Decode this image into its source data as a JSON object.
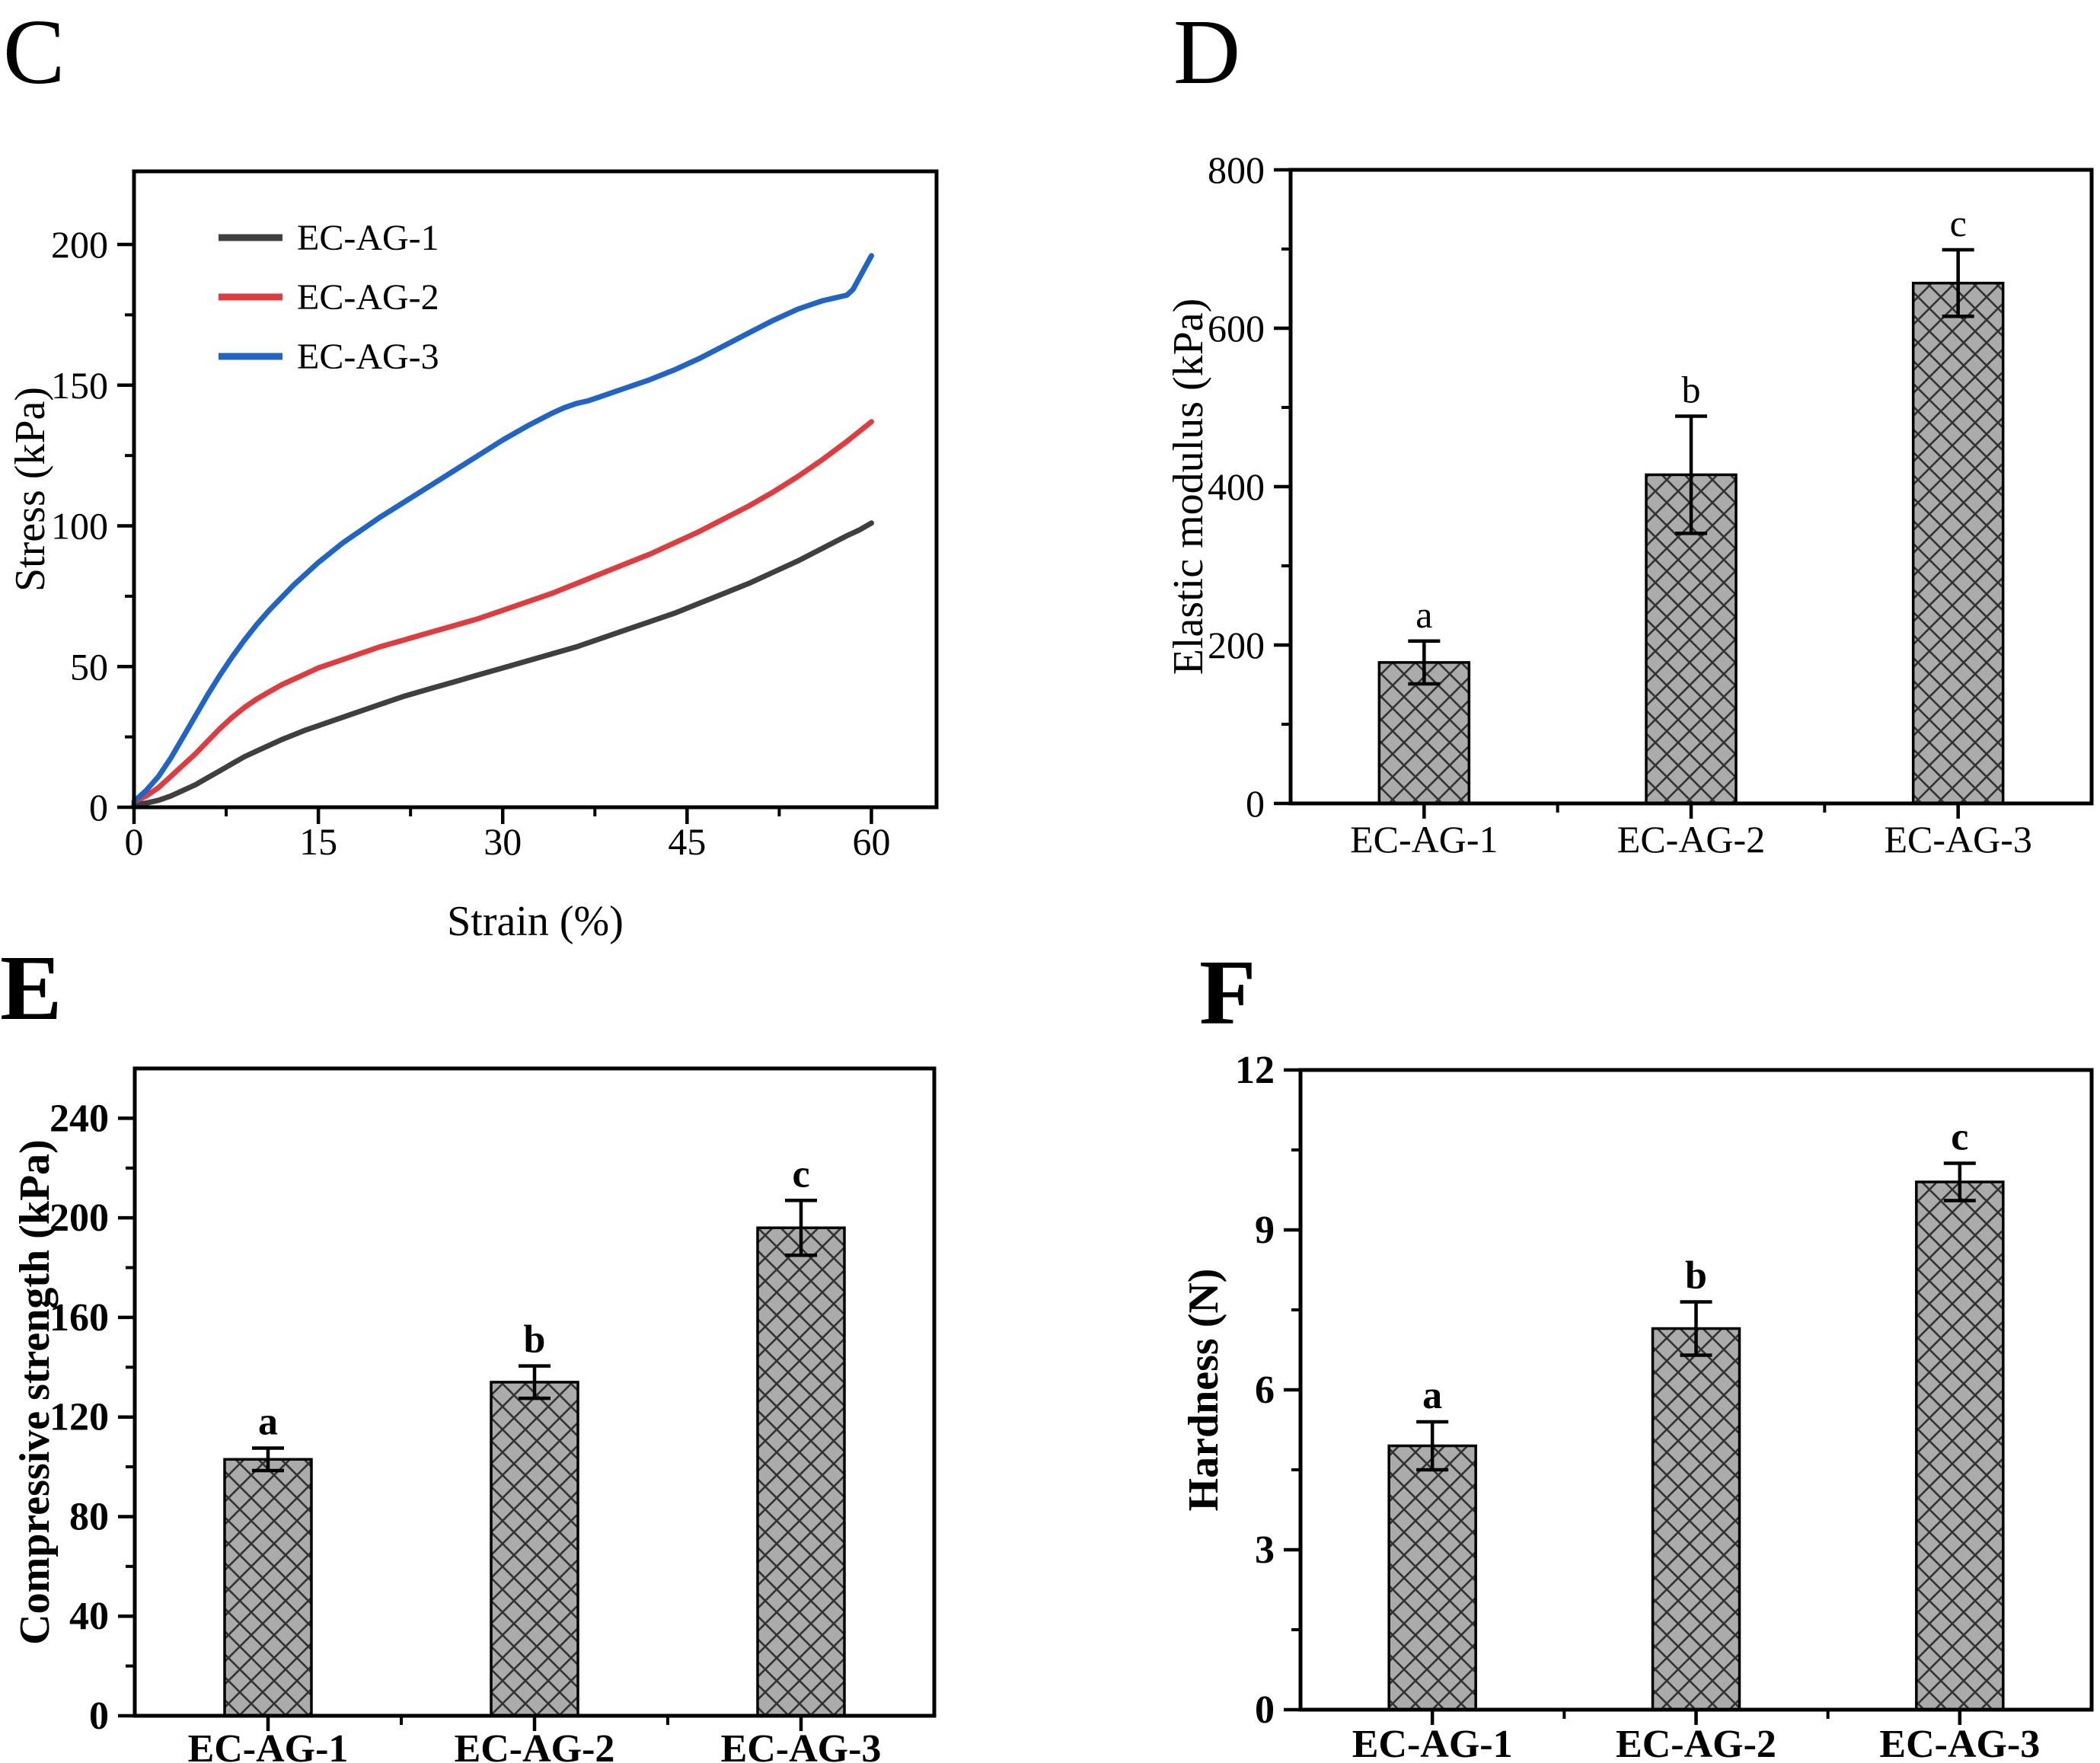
{
  "figure": {
    "background": "#ffffff",
    "axis_color": "#000000",
    "bar_style": {
      "fill": "#ababab",
      "hatch_color": "#333333",
      "edge_color": "#000000",
      "hatch": "diagonal-crosshatch"
    },
    "error_bar_color": "#000000"
  },
  "chart_data": [
    {
      "id": "C",
      "panel_label": "C",
      "type": "line",
      "xlabel": "Strain (%)",
      "ylabel": "Stress (kPa)",
      "xlim": [
        0,
        65.3
      ],
      "ylim": [
        0,
        226
      ],
      "xticks": [
        0,
        15,
        30,
        45,
        60
      ],
      "xminor": [
        7.5,
        22.5,
        37.5,
        52.5
      ],
      "yticks": [
        0,
        50,
        100,
        150,
        200
      ],
      "yminor": [
        25,
        75,
        125,
        175
      ],
      "grid": false,
      "legend_position": "top-left",
      "series": [
        {
          "name": "EC-AG-1",
          "color": "#3f3f3f",
          "points": [
            [
              0,
              1
            ],
            [
              1,
              1.5
            ],
            [
              2,
              2.5
            ],
            [
              3,
              4
            ],
            [
              4,
              6
            ],
            [
              5,
              8
            ],
            [
              6,
              10.5
            ],
            [
              7,
              13
            ],
            [
              8,
              15.5
            ],
            [
              9,
              18
            ],
            [
              10,
              20
            ],
            [
              12,
              24
            ],
            [
              14,
              27.5
            ],
            [
              15,
              29
            ],
            [
              16,
              30.5
            ],
            [
              18,
              33.5
            ],
            [
              20,
              36.5
            ],
            [
              22,
              39.5
            ],
            [
              24,
              42
            ],
            [
              26,
              44.5
            ],
            [
              28,
              47
            ],
            [
              30,
              49.5
            ],
            [
              32,
              52
            ],
            [
              34,
              54.5
            ],
            [
              36,
              57
            ],
            [
              38,
              60
            ],
            [
              40,
              63
            ],
            [
              42,
              66
            ],
            [
              44,
              69
            ],
            [
              46,
              72.5
            ],
            [
              48,
              76
            ],
            [
              50,
              79.5
            ],
            [
              52,
              83.5
            ],
            [
              54,
              87.5
            ],
            [
              56,
              92
            ],
            [
              58,
              96.5
            ],
            [
              59,
              98.5
            ],
            [
              60,
              101
            ]
          ]
        },
        {
          "name": "EC-AG-2",
          "color": "#e23b3e",
          "points": [
            [
              0,
              2
            ],
            [
              1,
              4
            ],
            [
              2,
              7
            ],
            [
              3,
              11
            ],
            [
              4,
              15
            ],
            [
              5,
              19
            ],
            [
              6,
              23.5
            ],
            [
              7,
              28
            ],
            [
              8,
              32
            ],
            [
              9,
              35.5
            ],
            [
              10,
              38.5
            ],
            [
              11,
              41
            ],
            [
              12,
              43.5
            ],
            [
              13,
              45.5
            ],
            [
              14,
              47.5
            ],
            [
              15,
              49.5
            ],
            [
              16,
              51
            ],
            [
              18,
              54
            ],
            [
              20,
              57
            ],
            [
              22,
              59.5
            ],
            [
              24,
              62
            ],
            [
              26,
              64.5
            ],
            [
              28,
              67
            ],
            [
              30,
              70
            ],
            [
              32,
              73
            ],
            [
              34,
              76
            ],
            [
              36,
              79.5
            ],
            [
              38,
              83
            ],
            [
              40,
              86.5
            ],
            [
              42,
              90
            ],
            [
              44,
              94
            ],
            [
              46,
              98
            ],
            [
              48,
              102.5
            ],
            [
              50,
              107
            ],
            [
              52,
              112
            ],
            [
              54,
              117.5
            ],
            [
              56,
              123.5
            ],
            [
              58,
              130
            ],
            [
              59,
              133.5
            ],
            [
              60,
              137
            ]
          ]
        },
        {
          "name": "EC-AG-3",
          "color": "#1f64c8",
          "points": [
            [
              0,
              2
            ],
            [
              1,
              6
            ],
            [
              2,
              11
            ],
            [
              3,
              17.5
            ],
            [
              4,
              25
            ],
            [
              5,
              32.5
            ],
            [
              6,
              40
            ],
            [
              7,
              47
            ],
            [
              8,
              53.5
            ],
            [
              9,
              59.5
            ],
            [
              10,
              65
            ],
            [
              11,
              70
            ],
            [
              12,
              74.5
            ],
            [
              13,
              79
            ],
            [
              14,
              83
            ],
            [
              15,
              87
            ],
            [
              16,
              90.5
            ],
            [
              17,
              94
            ],
            [
              18,
              97
            ],
            [
              19,
              100
            ],
            [
              20,
              103
            ],
            [
              22,
              108.5
            ],
            [
              24,
              114
            ],
            [
              26,
              119.5
            ],
            [
              28,
              125
            ],
            [
              30,
              130.5
            ],
            [
              32,
              135.5
            ],
            [
              34,
              140
            ],
            [
              35,
              142
            ],
            [
              36,
              143.5
            ],
            [
              37,
              144.5
            ],
            [
              38,
              146
            ],
            [
              40,
              149
            ],
            [
              42,
              152
            ],
            [
              44,
              155.5
            ],
            [
              46,
              159.5
            ],
            [
              48,
              164
            ],
            [
              50,
              168.5
            ],
            [
              52,
              173
            ],
            [
              54,
              177
            ],
            [
              55,
              178.5
            ],
            [
              56,
              180
            ],
            [
              57,
              181
            ],
            [
              58,
              182
            ],
            [
              58.5,
              184
            ],
            [
              59,
              188
            ],
            [
              59.5,
              192
            ],
            [
              60,
              196
            ]
          ]
        }
      ]
    },
    {
      "id": "D",
      "panel_label": "D",
      "type": "bar",
      "ylabel": "Elastic modulus (kPa)",
      "ylim": [
        0,
        800
      ],
      "yticks": [
        0,
        200,
        400,
        600,
        800
      ],
      "yminor": [
        100,
        300,
        500,
        700
      ],
      "categories": [
        "EC-AG-1",
        "EC-AG-2",
        "EC-AG-3"
      ],
      "values": [
        178,
        415,
        657
      ],
      "errors": [
        27,
        74,
        42
      ],
      "sig_letters": [
        "a",
        "b",
        "c"
      ]
    },
    {
      "id": "E",
      "panel_label": "E",
      "type": "bar",
      "ylabel": "Compressive strength (kPa)",
      "ylim": [
        0,
        260
      ],
      "yticks": [
        0,
        40,
        80,
        120,
        160,
        200,
        240
      ],
      "yminor": [
        20,
        60,
        100,
        140,
        180,
        220
      ],
      "categories": [
        "EC-AG-1",
        "EC-AG-2",
        "EC-AG-3"
      ],
      "values": [
        103,
        134,
        196
      ],
      "errors": [
        4.5,
        6.5,
        11
      ],
      "sig_letters": [
        "a",
        "b",
        "c"
      ]
    },
    {
      "id": "F",
      "panel_label": "F",
      "type": "bar",
      "ylabel": "Hardness (N)",
      "ylim": [
        0,
        12
      ],
      "yticks": [
        0,
        3,
        6,
        9,
        12
      ],
      "yminor": [
        1.5,
        4.5,
        7.5,
        10.5
      ],
      "categories": [
        "EC-AG-1",
        "EC-AG-2",
        "EC-AG-3"
      ],
      "values": [
        4.95,
        7.15,
        9.9
      ],
      "errors": [
        0.45,
        0.5,
        0.35
      ],
      "sig_letters": [
        "a",
        "b",
        "c"
      ]
    }
  ]
}
